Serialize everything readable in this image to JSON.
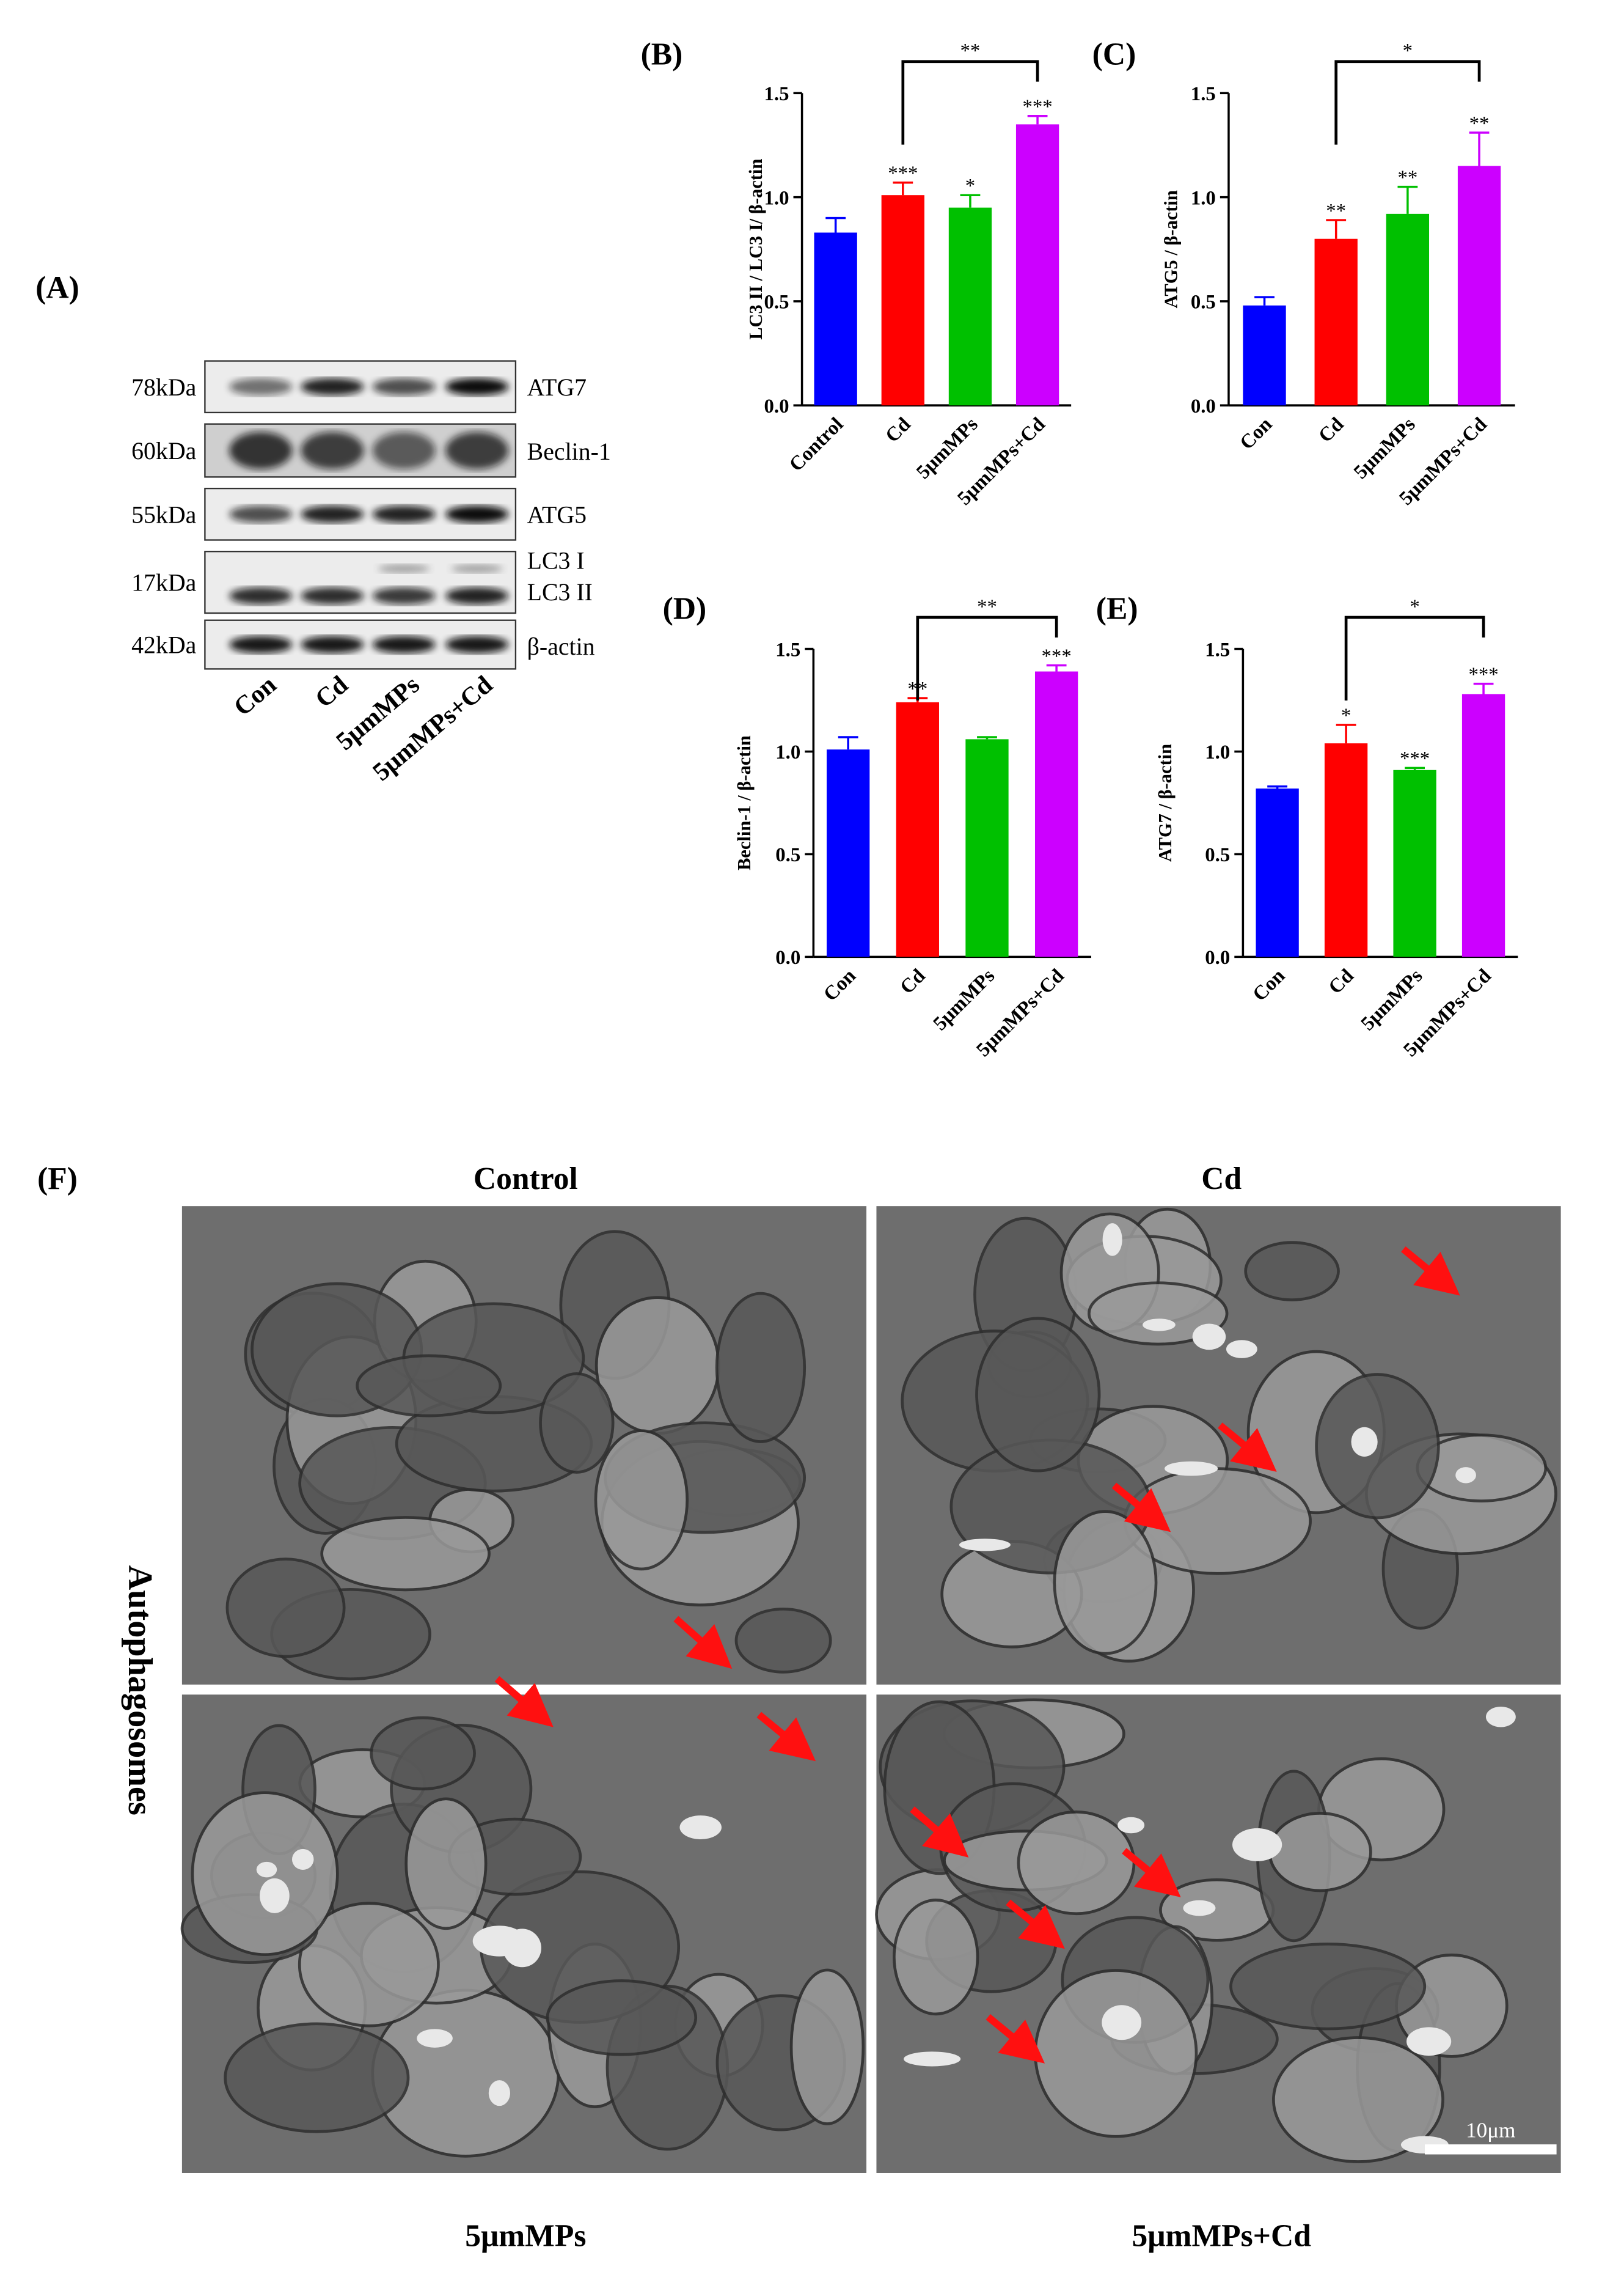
{
  "chart_data": [
    {
      "type": "bar",
      "panel_label": "(B)",
      "ylabel": "LC3 II / LC3 I/ β-actin",
      "categories": [
        "Control",
        "Cd",
        "5μmMPs",
        "5μmMPs+Cd"
      ],
      "values": [
        0.83,
        1.01,
        0.95,
        1.35
      ],
      "errors": [
        0.07,
        0.06,
        0.06,
        0.04
      ],
      "significance": [
        null,
        "***",
        "*",
        "***"
      ],
      "comparison_label": "**",
      "colors": [
        "#0000ff",
        "#ff0000",
        "#00c000",
        "#cc00ff"
      ],
      "ylim": [
        0,
        1.5
      ],
      "yticks": [
        {
          "value": 0,
          "label": "0.0"
        },
        {
          "value": 0.5,
          "label": "0.5"
        },
        {
          "value": 1,
          "label": "1.0"
        },
        {
          "value": 1.5,
          "label": "1.5"
        }
      ]
    },
    {
      "type": "bar",
      "panel_label": "(C)",
      "ylabel": "ATG5 / β-actin",
      "categories": [
        "Con",
        "Cd",
        "5μmMPs",
        "5μmMPs+Cd"
      ],
      "values": [
        0.48,
        0.8,
        0.92,
        1.15
      ],
      "errors": [
        0.04,
        0.09,
        0.13,
        0.16
      ],
      "significance": [
        null,
        "**",
        "**",
        "**"
      ],
      "comparison_label": "*",
      "colors": [
        "#0000ff",
        "#ff0000",
        "#00c000",
        "#cc00ff"
      ],
      "ylim": [
        0,
        1.5
      ],
      "yticks": [
        {
          "value": 0,
          "label": "0.0"
        },
        {
          "value": 0.5,
          "label": "0.5"
        },
        {
          "value": 1,
          "label": "1.0"
        },
        {
          "value": 1.5,
          "label": "1.5"
        }
      ]
    },
    {
      "type": "bar",
      "panel_label": "(D)",
      "ylabel": "Beclin-1 / β-actin",
      "categories": [
        "Con",
        "Cd",
        "5μmMPs",
        "5μmMPs+Cd"
      ],
      "values": [
        1.01,
        1.24,
        1.06,
        1.39
      ],
      "errors": [
        0.06,
        0.02,
        0.01,
        0.03
      ],
      "significance": [
        null,
        "**",
        null,
        "***"
      ],
      "comparison_label": "**",
      "colors": [
        "#0000ff",
        "#ff0000",
        "#00c000",
        "#cc00ff"
      ],
      "ylim": [
        0,
        1.5
      ],
      "yticks": [
        {
          "value": 0,
          "label": "0.0"
        },
        {
          "value": 0.5,
          "label": "0.5"
        },
        {
          "value": 1,
          "label": "1.0"
        },
        {
          "value": 1.5,
          "label": "1.5"
        }
      ]
    },
    {
      "type": "bar",
      "panel_label": "(E)",
      "ylabel": "ATG7 / β-actin",
      "categories": [
        "Con",
        "Cd",
        "5μmMPs",
        "5μmMPs+Cd"
      ],
      "values": [
        0.82,
        1.04,
        0.91,
        1.28
      ],
      "errors": [
        0.01,
        0.09,
        0.01,
        0.05
      ],
      "significance": [
        null,
        "*",
        "***",
        "***"
      ],
      "comparison_label": "*",
      "colors": [
        "#0000ff",
        "#ff0000",
        "#00c000",
        "#cc00ff"
      ],
      "ylim": [
        0,
        1.5
      ],
      "yticks": [
        {
          "value": 0,
          "label": "0.0"
        },
        {
          "value": 0.5,
          "label": "0.5"
        },
        {
          "value": 1,
          "label": "1.0"
        },
        {
          "value": 1.5,
          "label": "1.5"
        }
      ]
    }
  ],
  "blot": {
    "panel_label": "(A)",
    "markers": [
      "78kDa",
      "60kDa",
      "55kDa",
      "17kDa",
      "42kDa"
    ],
    "proteins": [
      "ATG7",
      "Beclin-1",
      "ATG5",
      "LC3 I",
      "LC3 II",
      "β-actin"
    ],
    "lanes": [
      "Con",
      "Cd",
      "5μmMPs",
      "5μmMPs+Cd"
    ]
  },
  "tem": {
    "panel_label": "(F)",
    "side_label": "Autophagosomes",
    "panels": [
      "Control",
      "Cd",
      "5μmMPs",
      "5μmMPs+Cd"
    ],
    "scale_bar": "10μm"
  }
}
